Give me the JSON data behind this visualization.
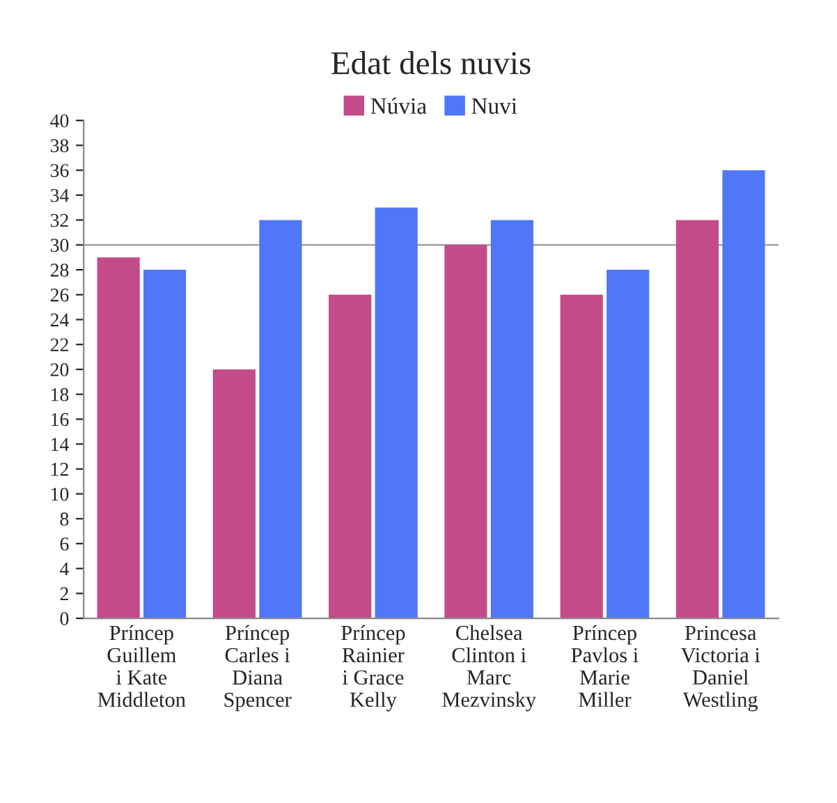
{
  "chart_data": {
    "type": "bar",
    "title": "Edat dels nuvis",
    "categories": [
      "Príncep\nGuillem\ni Kate\nMiddleton",
      "Príncep\nCarles i\nDiana\nSpencer",
      "Príncep\nRainier\ni Grace\nKelly",
      "Chelsea\nClinton i\nMarc\nMezvinsky",
      "Príncep\nPavlos i\nMarie\nMiller",
      "Princesa\nVictoria i\nDaniel\nWestling"
    ],
    "series": [
      {
        "name": "Núvia",
        "color": "#c44b8a",
        "values": [
          29,
          20,
          26,
          30,
          26,
          32
        ]
      },
      {
        "name": "Nuvi",
        "color": "#4f77f7",
        "values": [
          28,
          32,
          33,
          32,
          28,
          36
        ]
      }
    ],
    "ylim": [
      0,
      40
    ],
    "yticks": [
      0,
      2,
      4,
      6,
      8,
      10,
      12,
      14,
      16,
      18,
      20,
      22,
      24,
      26,
      28,
      30,
      32,
      34,
      36,
      38,
      40
    ],
    "ref_lines": [
      {
        "axis": "y",
        "value": 30,
        "label": null,
        "color": "#999999"
      }
    ],
    "grid": false,
    "legend": "top"
  }
}
